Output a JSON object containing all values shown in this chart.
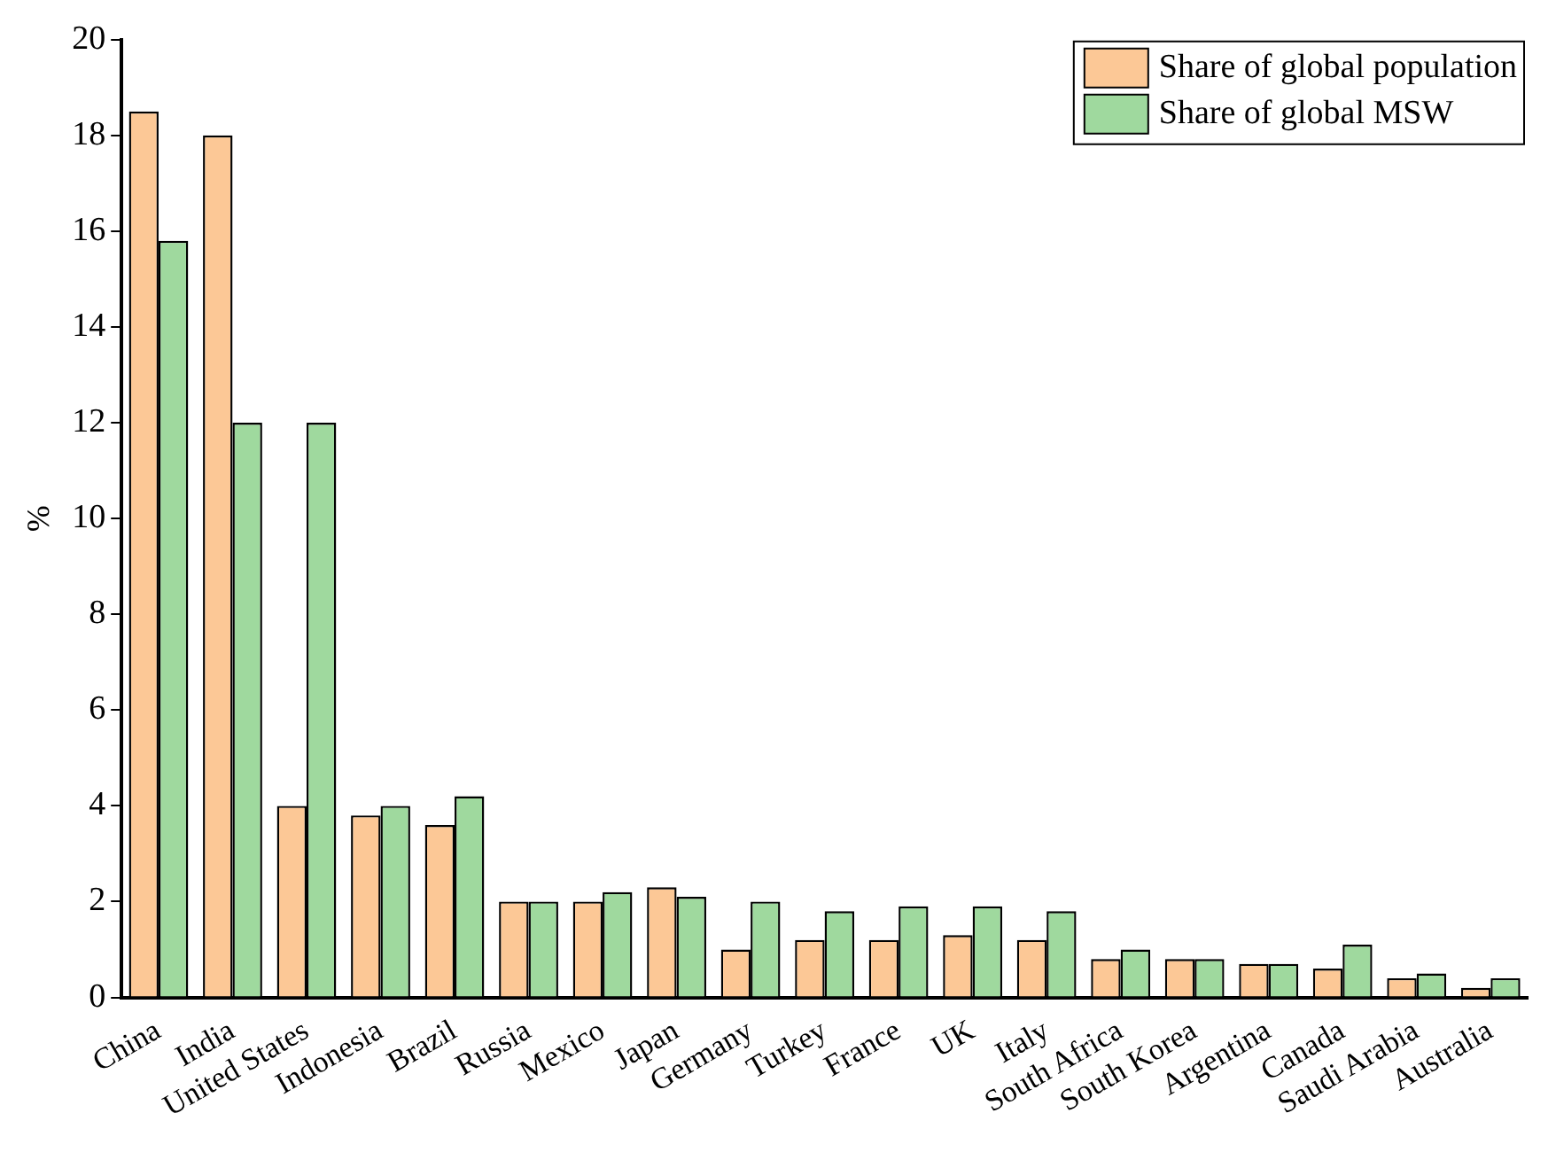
{
  "chart_data": {
    "type": "bar",
    "ylabel": "%",
    "categories": [
      "China",
      "India",
      "United States",
      "Indonesia",
      "Brazil",
      "Russia",
      "Mexico",
      "Japan",
      "Germany",
      "Turkey",
      "France",
      "UK",
      "Italy",
      "South Africa",
      "South Korea",
      "Argentina",
      "Canada",
      "Saudi Arabia",
      "Australia"
    ],
    "series": [
      {
        "name": "Share of global population",
        "color": "#fcc896",
        "values": [
          18.5,
          18.0,
          4.0,
          3.8,
          3.6,
          2.0,
          2.0,
          2.3,
          1.0,
          1.2,
          1.2,
          1.3,
          1.2,
          0.8,
          0.8,
          0.7,
          0.6,
          0.4,
          0.2
        ]
      },
      {
        "name": "Share of global MSW",
        "color": "#9fd99e",
        "values": [
          15.8,
          12.0,
          12.0,
          4.0,
          4.2,
          2.0,
          2.2,
          2.1,
          2.0,
          1.8,
          1.9,
          1.9,
          1.8,
          1.0,
          0.8,
          0.7,
          1.1,
          0.5,
          0.4
        ]
      }
    ],
    "ylim": [
      0,
      20
    ],
    "yticks": [
      0,
      2,
      4,
      6,
      8,
      10,
      12,
      14,
      16,
      18,
      20
    ],
    "grid": false,
    "legend": "top right"
  }
}
